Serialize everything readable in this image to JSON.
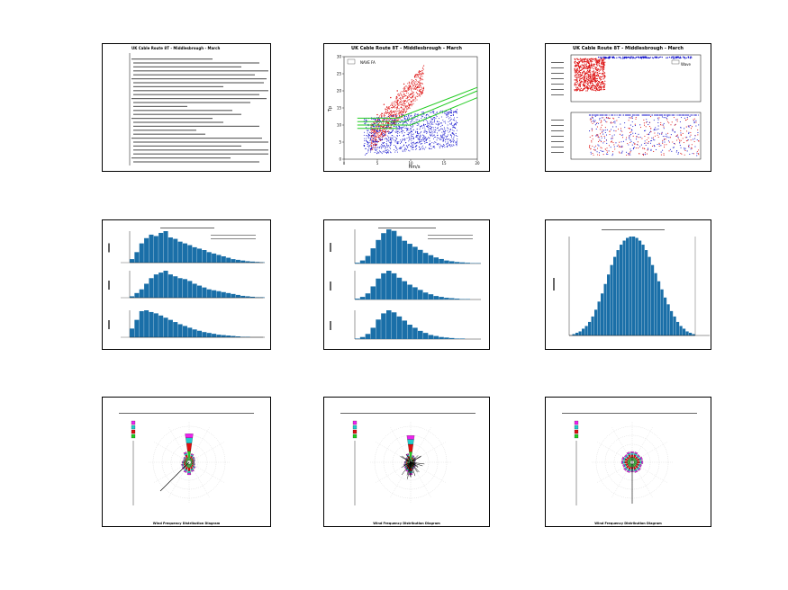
{
  "panels": {
    "p1": {
      "title": "UK Cable Route 8T - Middlesbrough - March"
    },
    "p2": {
      "title": "UK Cable Route 8T - Middlesbrough - March",
      "xlabel": "Hm/s",
      "ylabel": "Tp",
      "legend": [
        "",
        "",
        "NAVE FA"
      ]
    },
    "p3": {
      "title": "UK Cable Route 8T - Middlesbrough - March",
      "legend": [
        "",
        "Wave"
      ]
    },
    "p9": {
      "footer": "Wind Frequency Distribution Diagram"
    },
    "p7": {
      "footer": "Wind Frequency Distribution Diagram"
    },
    "p8": {
      "footer": "Wind Frequency Distribution Diagram"
    }
  },
  "colors": {
    "blue": "#1010cc",
    "red": "#dd1010",
    "green": "#22cc22",
    "bar": "#1a6fa8",
    "magenta": "#ee22ee",
    "cyan": "#22cccc"
  },
  "chart_data": [
    {
      "type": "scatter",
      "panel": "p2",
      "title": "UK Cable Route 8T - Middlesbrough - March",
      "xlabel": "Hm/s",
      "ylabel": "Tp",
      "xlim": [
        0,
        20
      ],
      "ylim": [
        0,
        30
      ],
      "xticks": [
        0,
        5,
        10,
        15,
        20
      ],
      "yticks": [
        0,
        5,
        10,
        15,
        20,
        25,
        30
      ],
      "series": [
        {
          "color": "red",
          "points": [
            [
              4,
              10
            ],
            [
              5,
              13
            ],
            [
              6,
              16
            ],
            [
              7,
              18
            ],
            [
              8,
              20
            ],
            [
              9,
              22
            ],
            [
              6,
              11
            ],
            [
              7,
              13
            ],
            [
              5,
              9
            ],
            [
              8,
              15
            ],
            [
              9,
              17
            ],
            [
              10,
              19
            ],
            [
              11,
              21
            ],
            [
              7,
              9
            ],
            [
              6,
              8
            ],
            [
              8,
              12
            ],
            [
              9,
              14
            ],
            [
              10,
              16
            ]
          ]
        },
        {
          "color": "blue",
          "points": [
            [
              3,
              4
            ],
            [
              4,
              6
            ],
            [
              5,
              5
            ],
            [
              6,
              7
            ],
            [
              7,
              6
            ],
            [
              8,
              8
            ],
            [
              9,
              7
            ],
            [
              10,
              9
            ],
            [
              11,
              8
            ],
            [
              12,
              10
            ],
            [
              13,
              9
            ],
            [
              14,
              11
            ],
            [
              15,
              8
            ],
            [
              4,
              3
            ],
            [
              5,
              8
            ],
            [
              6,
              4
            ],
            [
              7,
              9
            ],
            [
              8,
              5
            ]
          ]
        }
      ],
      "lines": [
        {
          "color": "green",
          "points": [
            [
              2,
              12
            ],
            [
              8,
              12
            ],
            [
              20,
              21
            ]
          ]
        },
        {
          "color": "green",
          "points": [
            [
              2,
              11
            ],
            [
              9,
              11
            ],
            [
              20,
              20
            ]
          ]
        },
        {
          "color": "green",
          "points": [
            [
              2,
              10
            ],
            [
              10,
              10
            ],
            [
              20,
              18
            ]
          ]
        },
        {
          "color": "green",
          "points": [
            [
              2,
              9
            ],
            [
              8,
              9
            ]
          ]
        }
      ]
    },
    {
      "type": "bar",
      "panel": "p6",
      "values": [
        0,
        1,
        2,
        3,
        5,
        7,
        10,
        14,
        19,
        25,
        31,
        38,
        45,
        52,
        58,
        63,
        67,
        70,
        72,
        73,
        73,
        72,
        70,
        67,
        63,
        58,
        52,
        46,
        40,
        34,
        28,
        23,
        18,
        14,
        10,
        7,
        5,
        3,
        2,
        1
      ]
    },
    {
      "type": "bar",
      "panel": "p4",
      "series": [
        {
          "values": [
            10,
            30,
            55,
            70,
            80,
            76,
            85,
            90,
            72,
            68,
            60,
            55,
            50,
            44,
            40,
            36,
            30,
            26,
            22,
            18,
            14,
            10,
            8,
            6,
            4,
            3,
            2,
            1
          ]
        },
        {
          "values": [
            3,
            10,
            18,
            30,
            42,
            50,
            54,
            58,
            50,
            46,
            42,
            40,
            36,
            30,
            26,
            22,
            18,
            16,
            14,
            12,
            10,
            8,
            6,
            4,
            3,
            2,
            1,
            1
          ]
        },
        {
          "values": [
            20,
            40,
            60,
            62,
            58,
            55,
            50,
            45,
            40,
            35,
            30,
            26,
            22,
            18,
            15,
            12,
            10,
            8,
            6,
            5,
            4,
            3,
            2,
            1,
            1,
            0,
            0,
            0
          ]
        }
      ]
    },
    {
      "type": "bar",
      "panel": "p5",
      "series": [
        {
          "values": [
            2,
            8,
            20,
            40,
            62,
            80,
            90,
            86,
            72,
            60,
            52,
            44,
            36,
            28,
            22,
            16,
            12,
            8,
            6,
            4,
            3,
            2,
            1,
            1
          ]
        },
        {
          "values": [
            2,
            6,
            14,
            30,
            48,
            60,
            66,
            60,
            50,
            42,
            34,
            28,
            22,
            16,
            12,
            8,
            6,
            4,
            3,
            2,
            1,
            1,
            0,
            0
          ]
        },
        {
          "values": [
            1,
            4,
            10,
            22,
            38,
            50,
            56,
            52,
            44,
            36,
            28,
            22,
            16,
            12,
            8,
            6,
            4,
            3,
            2,
            1,
            1,
            0,
            0,
            0
          ]
        }
      ]
    }
  ]
}
